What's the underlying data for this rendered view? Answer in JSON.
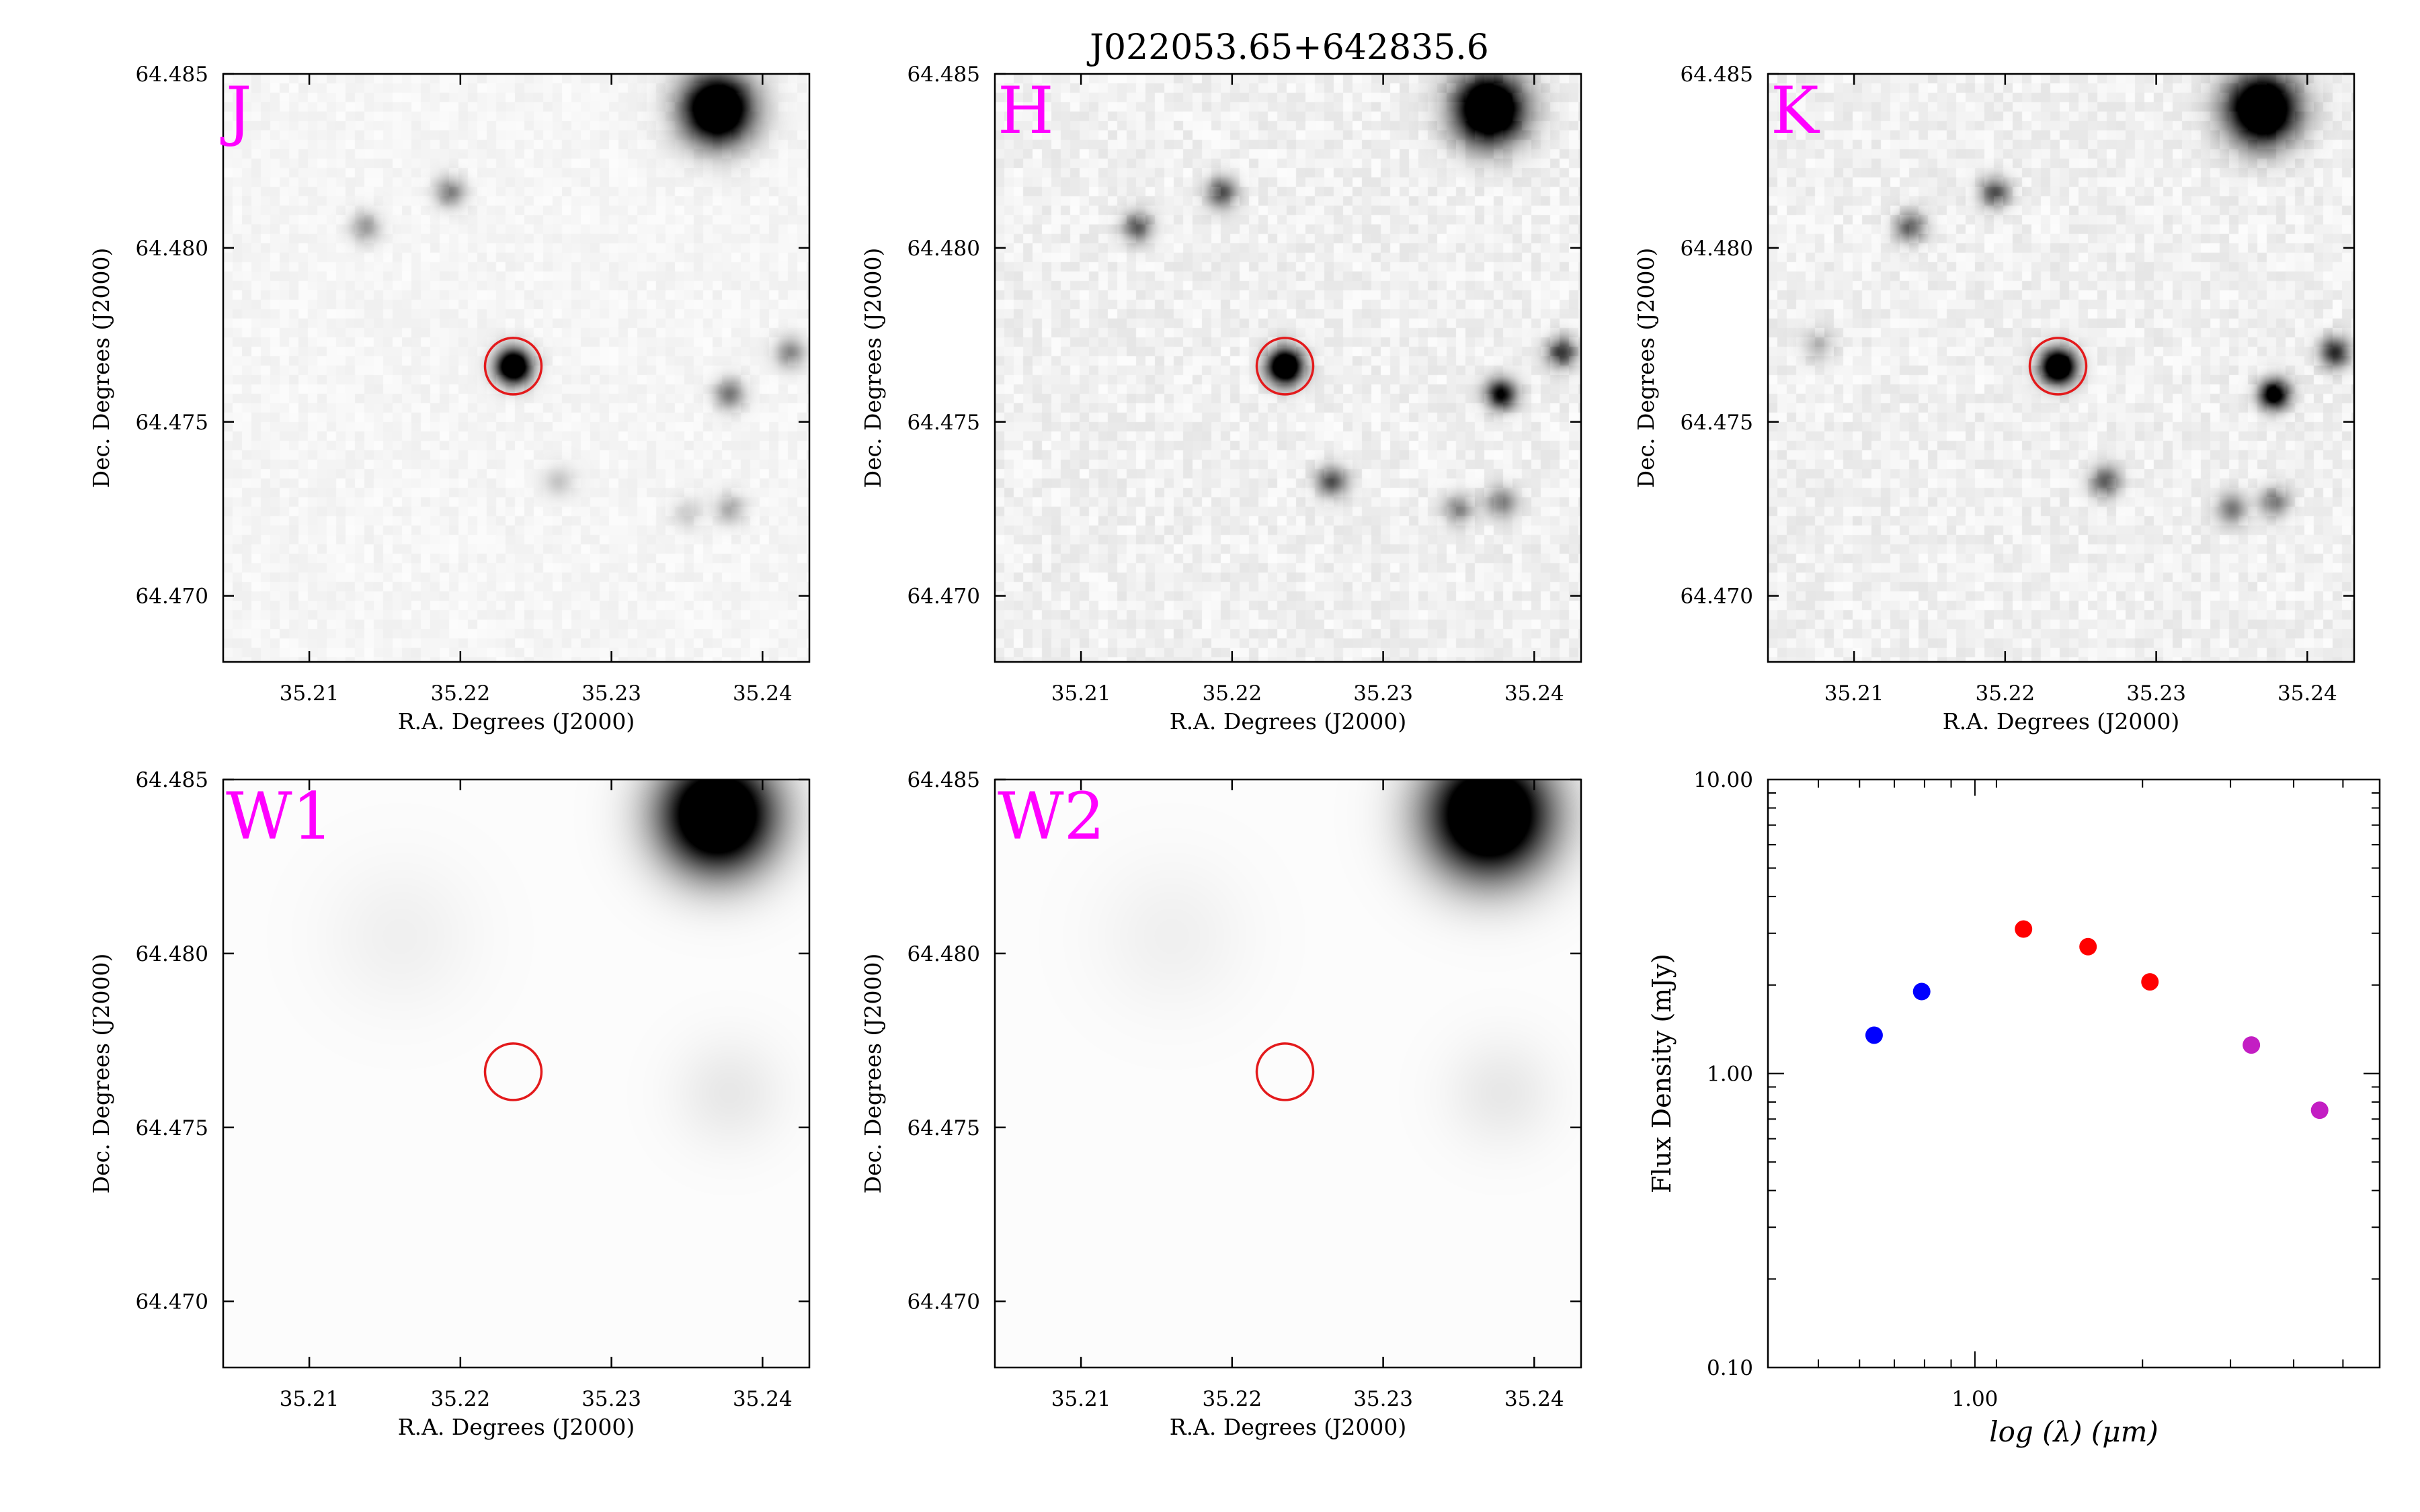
{
  "figure": {
    "title": "J022053.65+642835.6",
    "label_color": "#ff00ff",
    "marker_color": "#e31a1c"
  },
  "chart_data": [
    {
      "type": "heatmap",
      "band": "J",
      "xlabel": "R.A. Degrees (J2000)",
      "ylabel": "Dec. Degrees (J2000)",
      "xlim": [
        35.2043,
        35.2431
      ],
      "ylim": [
        64.4681,
        64.485
      ],
      "xticks": [
        "35.21",
        "35.22",
        "35.23",
        "35.24"
      ],
      "yticks": [
        "64.485",
        "64.480",
        "64.475",
        "64.470"
      ],
      "target_marker": {
        "ra": 35.2235,
        "dec": 64.4766
      },
      "sources": [
        {
          "ra": 35.237,
          "dec": 64.484,
          "peak": 1.0,
          "sigma": 0.0016
        },
        {
          "ra": 35.2235,
          "dec": 64.4766,
          "peak": 0.95,
          "sigma": 0.0008
        },
        {
          "ra": 35.2193,
          "dec": 64.4816,
          "peak": 0.28,
          "sigma": 0.0007
        },
        {
          "ra": 35.2137,
          "dec": 64.4806,
          "peak": 0.22,
          "sigma": 0.0007
        },
        {
          "ra": 35.2378,
          "dec": 64.4758,
          "peak": 0.32,
          "sigma": 0.0007
        },
        {
          "ra": 35.2418,
          "dec": 64.477,
          "peak": 0.26,
          "sigma": 0.0007
        },
        {
          "ra": 35.2378,
          "dec": 64.4725,
          "peak": 0.18,
          "sigma": 0.0007
        },
        {
          "ra": 35.235,
          "dec": 64.4724,
          "peak": 0.1,
          "sigma": 0.0007
        },
        {
          "ra": 35.2265,
          "dec": 64.4733,
          "peak": 0.12,
          "sigma": 0.0007
        }
      ]
    },
    {
      "type": "heatmap",
      "band": "H",
      "xlabel": "R.A. Degrees (J2000)",
      "ylabel": "Dec. Degrees (J2000)",
      "xlim": [
        35.2043,
        35.2431
      ],
      "ylim": [
        64.4681,
        64.485
      ],
      "xticks": [
        "35.21",
        "35.22",
        "35.23",
        "35.24"
      ],
      "yticks": [
        "64.485",
        "64.480",
        "64.475",
        "64.470"
      ],
      "target_marker": {
        "ra": 35.2235,
        "dec": 64.4766
      },
      "sources": [
        {
          "ra": 35.237,
          "dec": 64.484,
          "peak": 1.0,
          "sigma": 0.0016
        },
        {
          "ra": 35.2235,
          "dec": 64.4766,
          "peak": 0.97,
          "sigma": 0.0008
        },
        {
          "ra": 35.2193,
          "dec": 64.4816,
          "peak": 0.38,
          "sigma": 0.0007
        },
        {
          "ra": 35.2137,
          "dec": 64.4806,
          "peak": 0.36,
          "sigma": 0.0007
        },
        {
          "ra": 35.2378,
          "dec": 64.4758,
          "peak": 0.62,
          "sigma": 0.0007
        },
        {
          "ra": 35.2418,
          "dec": 64.477,
          "peak": 0.45,
          "sigma": 0.0007
        },
        {
          "ra": 35.2266,
          "dec": 64.4733,
          "peak": 0.4,
          "sigma": 0.0007
        },
        {
          "ra": 35.235,
          "dec": 64.4725,
          "peak": 0.25,
          "sigma": 0.0007
        },
        {
          "ra": 35.2378,
          "dec": 64.4727,
          "peak": 0.28,
          "sigma": 0.0007
        }
      ]
    },
    {
      "type": "heatmap",
      "band": "K",
      "xlabel": "R.A. Degrees (J2000)",
      "ylabel": "Dec. Degrees (J2000)",
      "xlim": [
        35.2043,
        35.2431
      ],
      "ylim": [
        64.4681,
        64.485
      ],
      "xticks": [
        "35.21",
        "35.22",
        "35.23",
        "35.24"
      ],
      "yticks": [
        "64.485",
        "64.480",
        "64.475",
        "64.470"
      ],
      "target_marker": {
        "ra": 35.2235,
        "dec": 64.4766
      },
      "sources": [
        {
          "ra": 35.237,
          "dec": 64.484,
          "peak": 1.0,
          "sigma": 0.0016
        },
        {
          "ra": 35.2235,
          "dec": 64.4766,
          "peak": 0.97,
          "sigma": 0.0008
        },
        {
          "ra": 35.2193,
          "dec": 64.4816,
          "peak": 0.38,
          "sigma": 0.0007
        },
        {
          "ra": 35.2137,
          "dec": 64.4806,
          "peak": 0.36,
          "sigma": 0.0007
        },
        {
          "ra": 35.2378,
          "dec": 64.4758,
          "peak": 0.72,
          "sigma": 0.0007
        },
        {
          "ra": 35.2418,
          "dec": 64.477,
          "peak": 0.5,
          "sigma": 0.0007
        },
        {
          "ra": 35.2266,
          "dec": 64.4733,
          "peak": 0.35,
          "sigma": 0.0007
        },
        {
          "ra": 35.235,
          "dec": 64.4725,
          "peak": 0.3,
          "sigma": 0.0007
        },
        {
          "ra": 35.2378,
          "dec": 64.4727,
          "peak": 0.3,
          "sigma": 0.0007
        },
        {
          "ra": 35.2076,
          "dec": 64.4772,
          "peak": 0.15,
          "sigma": 0.0007
        }
      ]
    },
    {
      "type": "heatmap",
      "band": "W1",
      "xlabel": "R.A. Degrees (J2000)",
      "ylabel": "Dec. Degrees (J2000)",
      "xlim": [
        35.2043,
        35.2431
      ],
      "ylim": [
        64.4681,
        64.485
      ],
      "xticks": [
        "35.21",
        "35.22",
        "35.23",
        "35.24"
      ],
      "yticks": [
        "64.485",
        "64.480",
        "64.475",
        "64.470"
      ],
      "target_marker": {
        "ra": 35.2235,
        "dec": 64.4766
      },
      "sources": [
        {
          "ra": 35.237,
          "dec": 64.484,
          "peak": 1.0,
          "sigma": 0.0026
        },
        {
          "ra": 35.2378,
          "dec": 64.476,
          "peak": 0.05,
          "sigma": 0.0025
        },
        {
          "ra": 35.216,
          "dec": 64.4805,
          "peak": 0.03,
          "sigma": 0.0035
        }
      ]
    },
    {
      "type": "heatmap",
      "band": "W2",
      "xlabel": "R.A. Degrees (J2000)",
      "ylabel": "Dec. Degrees (J2000)",
      "xlim": [
        35.2043,
        35.2431
      ],
      "ylim": [
        64.4681,
        64.485
      ],
      "xticks": [
        "35.21",
        "35.22",
        "35.23",
        "35.24"
      ],
      "yticks": [
        "64.485",
        "64.480",
        "64.475",
        "64.470"
      ],
      "target_marker": {
        "ra": 35.2235,
        "dec": 64.4766
      },
      "sources": [
        {
          "ra": 35.237,
          "dec": 64.484,
          "peak": 1.0,
          "sigma": 0.0028
        },
        {
          "ra": 35.2378,
          "dec": 64.476,
          "peak": 0.05,
          "sigma": 0.0025
        },
        {
          "ra": 35.216,
          "dec": 64.4805,
          "peak": 0.03,
          "sigma": 0.0035
        }
      ]
    },
    {
      "type": "scatter",
      "xlabel": "log (λ) (μm)",
      "ylabel": "Flux Density (mJy)",
      "xscale": "log",
      "yscale": "log",
      "xlim": [
        0.4,
        6.0
      ],
      "ylim": [
        0.1,
        10.0
      ],
      "xtick_labels": [
        "1.00"
      ],
      "ytick_labels": [
        "0.10",
        "1.00",
        "10.00"
      ],
      "series": [
        {
          "color": "#0000ff",
          "points": [
            {
              "x": 0.64,
              "y": 1.35
            },
            {
              "x": 0.79,
              "y": 1.9
            }
          ]
        },
        {
          "color": "#ff0000",
          "points": [
            {
              "x": 1.24,
              "y": 3.1
            },
            {
              "x": 1.65,
              "y": 2.7
            },
            {
              "x": 2.17,
              "y": 2.05
            }
          ]
        },
        {
          "color": "#c31ec3",
          "points": [
            {
              "x": 3.4,
              "y": 1.25
            },
            {
              "x": 4.6,
              "y": 0.75
            }
          ]
        }
      ]
    }
  ]
}
